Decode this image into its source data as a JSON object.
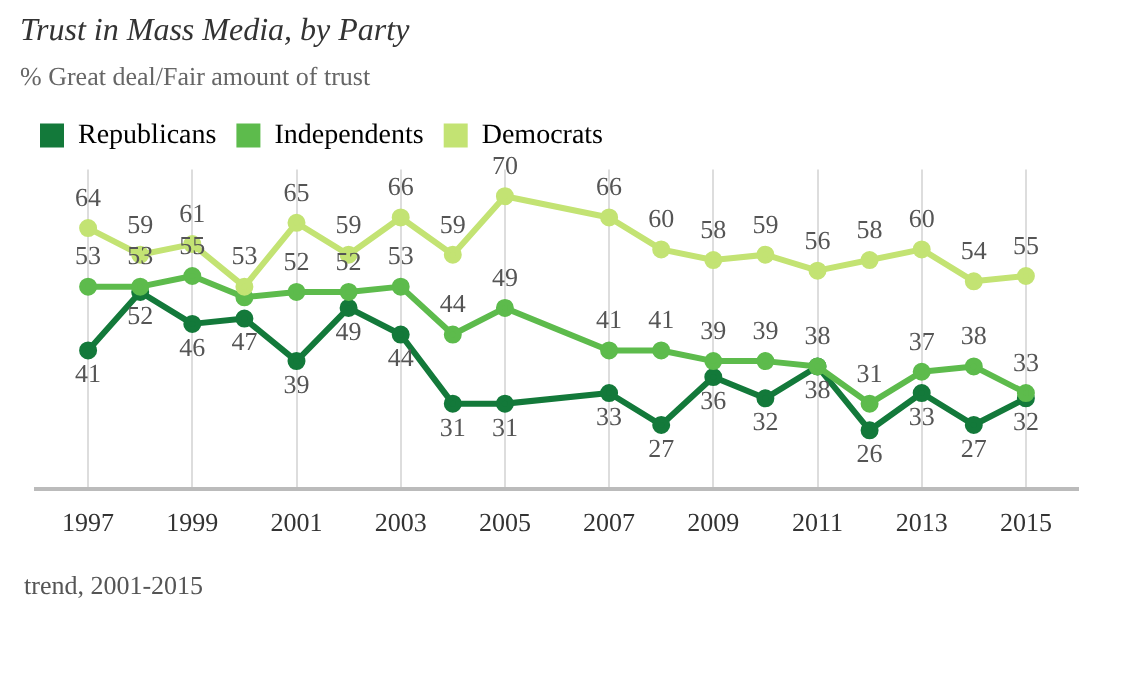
{
  "chart_data": {
    "type": "line",
    "title": "Trust in Mass Media, by Party",
    "subtitle": "% Great deal/Fair amount of trust",
    "x": [
      1997,
      1998,
      1999,
      2000,
      2001,
      2002,
      2003,
      2004,
      2005,
      2007,
      2008,
      2009,
      2010,
      2011,
      2012,
      2013,
      2014,
      2015
    ],
    "series": [
      {
        "name": "Republicans",
        "color": "#13793a",
        "values": [
          41,
          52,
          46,
          47,
          39,
          49,
          44,
          31,
          31,
          33,
          27,
          36,
          32,
          38,
          26,
          33,
          27,
          32
        ],
        "value_labels": [
          "41",
          "52",
          "46",
          "47",
          "39",
          "49",
          "44",
          "31",
          "31",
          "33",
          "27",
          "36",
          "32",
          "38",
          "26",
          "33",
          "27",
          "32"
        ]
      },
      {
        "name": "Independents",
        "color": "#5dbb4c",
        "values": [
          53,
          53,
          55,
          51,
          52,
          52,
          53,
          44,
          49,
          41,
          41,
          39,
          39,
          38,
          31,
          37,
          38,
          33
        ],
        "value_labels": [
          "53",
          "53",
          "55",
          null,
          "52",
          "52",
          "53",
          "44",
          "49",
          "41",
          "41",
          "39",
          "39",
          "38",
          "31",
          "37",
          "38",
          "33"
        ]
      },
      {
        "name": "Democrats",
        "color": "#c3e373",
        "values": [
          64,
          59,
          61,
          53,
          65,
          59,
          66,
          59,
          70,
          66,
          60,
          58,
          59,
          56,
          58,
          60,
          54,
          55
        ],
        "value_labels": [
          "64",
          "59",
          "61",
          "53",
          "65",
          "59",
          "66",
          "59",
          "70",
          "66",
          "60",
          "58",
          "59",
          "56",
          "58",
          "60",
          "54",
          "55"
        ]
      }
    ],
    "xlim": [
      1996,
      2016
    ],
    "xticks": [
      1997,
      1999,
      2001,
      2003,
      2005,
      2007,
      2009,
      2011,
      2013,
      2015
    ],
    "ylim": [
      15,
      75
    ],
    "tick_labels": "x",
    "grid": "x",
    "legend": "top left",
    "marker": "circle",
    "line_style": "solid",
    "annotations": [
      "trend, 2001-2015"
    ]
  }
}
